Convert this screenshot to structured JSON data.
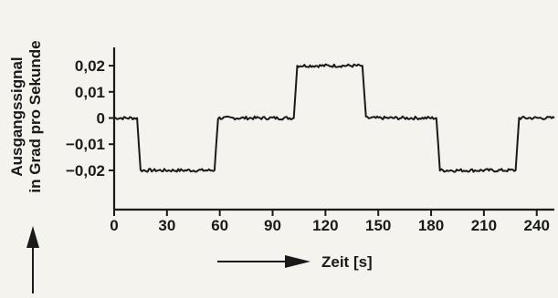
{
  "chart_data": {
    "type": "line",
    "title": "",
    "xlabel": "Zeit [s]",
    "ylabel_lines": [
      "Ausgangssignal",
      "in Grad pro Sekunde"
    ],
    "xlim": [
      0,
      250
    ],
    "ylim": [
      -0.035,
      0.027
    ],
    "grid": false,
    "x_ticks": [
      0,
      30,
      60,
      90,
      120,
      150,
      180,
      210,
      240
    ],
    "x_tick_labels": [
      "0",
      "30",
      "60",
      "90",
      "120",
      "150",
      "180",
      "210",
      "240"
    ],
    "y_ticks": [
      0.02,
      0.01,
      0,
      -0.01,
      -0.02
    ],
    "y_tick_labels": [
      "0,02",
      "0,01",
      "0",
      "−0,01",
      "−0,02"
    ],
    "series": [
      {
        "color": "#1a1a1a",
        "x": [
          0,
          13,
          14,
          15,
          57,
          58,
          59,
          102,
          103,
          104,
          141,
          142,
          143,
          183,
          184,
          185,
          228,
          229,
          230,
          250
        ],
        "y": [
          0,
          0,
          -0.01,
          -0.02,
          -0.02,
          -0.01,
          0,
          0,
          0.01,
          0.02,
          0.02,
          0.01,
          0,
          0,
          -0.01,
          -0.02,
          -0.02,
          -0.01,
          0,
          0
        ]
      }
    ]
  }
}
